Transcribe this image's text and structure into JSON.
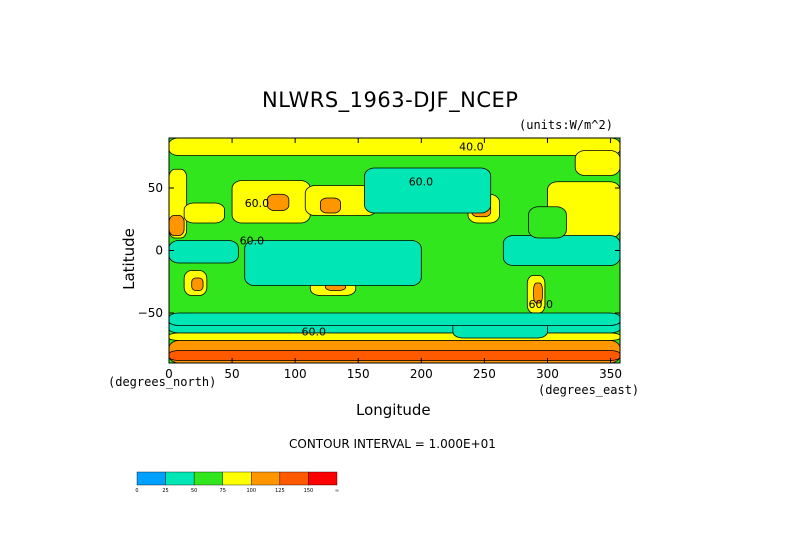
{
  "chart_data": {
    "type": "heatmap",
    "title": "NLWRS_1963-DJF_NCEP",
    "units": "(units:W/m^2)",
    "xlabel": "Longitude",
    "ylabel": "Latitude",
    "x_unit": "(degrees_east)",
    "y_unit": "(degrees_north)",
    "xlim": [
      0,
      357.5
    ],
    "ylim": [
      -90,
      90
    ],
    "x_ticks": [
      0,
      50,
      100,
      150,
      200,
      250,
      300,
      350
    ],
    "y_ticks": [
      -50,
      0,
      50
    ],
    "contour_interval_text": "CONTOUR INTERVAL = 1.000E+01",
    "contour_labels": [
      "60.0",
      "40.0",
      "60.0",
      "60.0",
      "60.0",
      "60.0"
    ],
    "colorbar": {
      "labels": [
        "0",
        "25",
        "50",
        "75",
        "100",
        "125",
        "150",
        "∞"
      ],
      "colors": [
        "#00a0ff",
        "#00e6b4",
        "#32e61e",
        "#ffff00",
        "#ff9600",
        "#ff5a00",
        "#ff0000"
      ]
    },
    "field_colors": {
      "c25_50": "#00e6b4",
      "c50_75": "#32e61e",
      "c75_100": "#ffff00",
      "c100_125": "#ff9600",
      "c125_150": "#ff5a00"
    },
    "regions": [
      {
        "lon": [
          0,
          360
        ],
        "lat": [
          76,
          90
        ],
        "bin": "c75_100"
      },
      {
        "lon": [
          0,
          360
        ],
        "lat": [
          -90,
          -72
        ],
        "bin": "c100_125"
      },
      {
        "lon": [
          0,
          360
        ],
        "lat": [
          -66,
          -56
        ],
        "bin": "c25_50"
      },
      {
        "lon": [
          0,
          360
        ],
        "lat": [
          -72,
          -66
        ],
        "bin": "c75_100"
      },
      {
        "lon": [
          0,
          14
        ],
        "lat": [
          10,
          65
        ],
        "bin": "c75_100"
      },
      {
        "lon": [
          0,
          12
        ],
        "lat": [
          12,
          28
        ],
        "bin": "c100_125"
      },
      {
        "lon": [
          12,
          44
        ],
        "lat": [
          22,
          38
        ],
        "bin": "c75_100"
      },
      {
        "lon": [
          50,
          112
        ],
        "lat": [
          22,
          56
        ],
        "bin": "c75_100"
      },
      {
        "lon": [
          78,
          95
        ],
        "lat": [
          32,
          45
        ],
        "bin": "c100_125"
      },
      {
        "lon": [
          108,
          165
        ],
        "lat": [
          28,
          52
        ],
        "bin": "c75_100"
      },
      {
        "lon": [
          120,
          136
        ],
        "lat": [
          30,
          42
        ],
        "bin": "c100_125"
      },
      {
        "lon": [
          237,
          262
        ],
        "lat": [
          22,
          45
        ],
        "bin": "c75_100"
      },
      {
        "lon": [
          240,
          255
        ],
        "lat": [
          27,
          38
        ],
        "bin": "c100_125"
      },
      {
        "lon": [
          300,
          357.5
        ],
        "lat": [
          10,
          55
        ],
        "bin": "c75_100"
      },
      {
        "lon": [
          322,
          357.5
        ],
        "lat": [
          60,
          80
        ],
        "bin": "c75_100"
      },
      {
        "lon": [
          112,
          148
        ],
        "lat": [
          -36,
          -20
        ],
        "bin": "c75_100"
      },
      {
        "lon": [
          124,
          140
        ],
        "lat": [
          -32,
          -24
        ],
        "bin": "c100_125"
      },
      {
        "lon": [
          12,
          30
        ],
        "lat": [
          -36,
          -16
        ],
        "bin": "c75_100"
      },
      {
        "lon": [
          18,
          27
        ],
        "lat": [
          -32,
          -22
        ],
        "bin": "c100_125"
      },
      {
        "lon": [
          284,
          298
        ],
        "lat": [
          -50,
          -20
        ],
        "bin": "c75_100"
      },
      {
        "lon": [
          289,
          296
        ],
        "lat": [
          -42,
          -26
        ],
        "bin": "c100_125"
      },
      {
        "lon": [
          60,
          200
        ],
        "lat": [
          -28,
          8
        ],
        "bin": "c25_50"
      },
      {
        "lon": [
          0,
          55
        ],
        "lat": [
          -10,
          8
        ],
        "bin": "c25_50"
      },
      {
        "lon": [
          265,
          357.5
        ],
        "lat": [
          -12,
          12
        ],
        "bin": "c25_50"
      },
      {
        "lon": [
          155,
          255
        ],
        "lat": [
          30,
          66
        ],
        "bin": "c25_50"
      },
      {
        "lon": [
          225,
          300
        ],
        "lat": [
          -70,
          -55
        ],
        "bin": "c25_50"
      },
      {
        "lon": [
          0,
          357.5
        ],
        "lat": [
          -60,
          -50
        ],
        "bin": "c25_50"
      },
      {
        "lon": [
          285,
          315
        ],
        "lat": [
          10,
          35
        ],
        "bin": "c50_75"
      },
      {
        "lon": [
          0,
          357.5
        ],
        "lat": [
          -88,
          -80
        ],
        "bin": "c125_150"
      }
    ]
  }
}
